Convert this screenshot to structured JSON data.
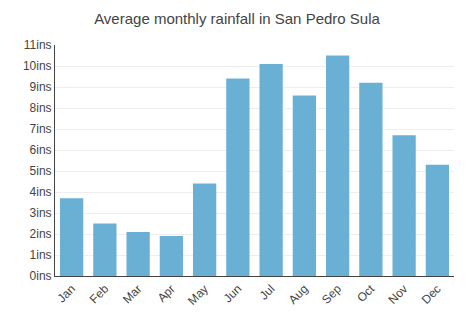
{
  "chart_data": {
    "type": "bar",
    "title": "Average monthly rainfall in San Pedro Sula",
    "categories": [
      "Jan",
      "Feb",
      "Mar",
      "Apr",
      "May",
      "Jun",
      "Jul",
      "Aug",
      "Sep",
      "Oct",
      "Nov",
      "Dec"
    ],
    "values": [
      3.7,
      2.5,
      2.1,
      1.9,
      4.4,
      9.4,
      10.1,
      8.6,
      10.5,
      9.2,
      6.7,
      5.3
    ],
    "color": "#6aafd4",
    "ylim": [
      0,
      11
    ],
    "yticks": [
      {
        "value": 0,
        "label": "0ins"
      },
      {
        "value": 1,
        "label": "1ins"
      },
      {
        "value": 2,
        "label": "2ins"
      },
      {
        "value": 3,
        "label": "3ins"
      },
      {
        "value": 4,
        "label": "4ins"
      },
      {
        "value": 5,
        "label": "5ins"
      },
      {
        "value": 6,
        "label": "6ins"
      },
      {
        "value": 7,
        "label": "7ins"
      },
      {
        "value": 8,
        "label": "8ins"
      },
      {
        "value": 9,
        "label": "9ins"
      },
      {
        "value": 10,
        "label": "10ins"
      },
      {
        "value": 11,
        "label": "11ins"
      }
    ],
    "grid": true
  }
}
